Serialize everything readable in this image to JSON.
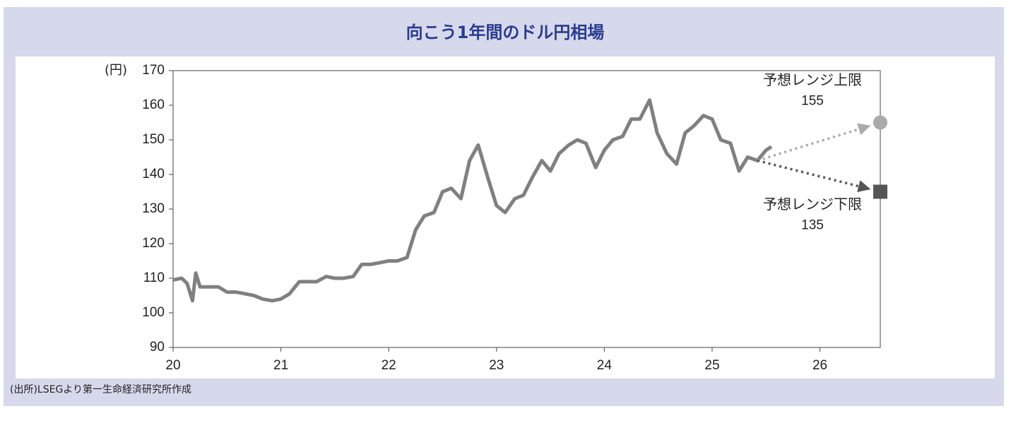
{
  "chart_data": {
    "type": "line",
    "title": "向こう1年間のドル円相場",
    "y_unit": "(円)",
    "source": "(出所)LSEGより第一生命経済研究所作成",
    "xlim": [
      20,
      26.56
    ],
    "xticks": [
      20,
      21,
      22,
      23,
      24,
      25,
      26
    ],
    "ylim": [
      90,
      170
    ],
    "yticks": [
      90,
      100,
      110,
      120,
      130,
      140,
      150,
      160,
      170
    ],
    "series": [
      {
        "color": "#808080",
        "x": [
          20.0,
          20.08,
          20.13,
          20.18,
          20.21,
          20.25,
          20.33,
          20.42,
          20.5,
          20.58,
          20.67,
          20.75,
          20.83,
          20.92,
          21.0,
          21.08,
          21.17,
          21.25,
          21.33,
          21.42,
          21.5,
          21.58,
          21.67,
          21.75,
          21.83,
          21.92,
          22.0,
          22.08,
          22.17,
          22.25,
          22.33,
          22.42,
          22.5,
          22.58,
          22.67,
          22.75,
          22.83,
          22.92,
          23.0,
          23.08,
          23.17,
          23.25,
          23.33,
          23.42,
          23.5,
          23.58,
          23.67,
          23.75,
          23.83,
          23.92,
          24.0,
          24.08,
          24.17,
          24.25,
          24.33,
          24.42,
          24.49,
          24.58,
          24.67,
          24.75,
          24.83,
          24.92,
          25.0,
          25.08,
          25.17,
          25.25,
          25.33,
          25.42,
          25.5,
          25.55
        ],
        "values": [
          109.5,
          110,
          108.5,
          103.5,
          111.5,
          107.5,
          107.5,
          107.5,
          106,
          106,
          105.5,
          105,
          104,
          103.5,
          104,
          105.5,
          109,
          109,
          109,
          110.5,
          110,
          110,
          110.5,
          114,
          114,
          114.5,
          115,
          115,
          116,
          124,
          128,
          129,
          135,
          136,
          133,
          144,
          148.5,
          139,
          131,
          129,
          133,
          134,
          139,
          144,
          141,
          146,
          148.5,
          150,
          149,
          142,
          147,
          150,
          151,
          156,
          156,
          161.5,
          152,
          146,
          143,
          152,
          154,
          157,
          156,
          150,
          149,
          141,
          145,
          144,
          147,
          148
        ]
      }
    ],
    "forecasts": [
      {
        "label": "予想レンジ上限",
        "value": 155,
        "x": 26.56,
        "color": "#aaaaaa",
        "marker": "circle"
      },
      {
        "label": "予想レンジ下限",
        "value": 135,
        "x": 26.56,
        "color": "#555555",
        "marker": "square"
      }
    ]
  }
}
